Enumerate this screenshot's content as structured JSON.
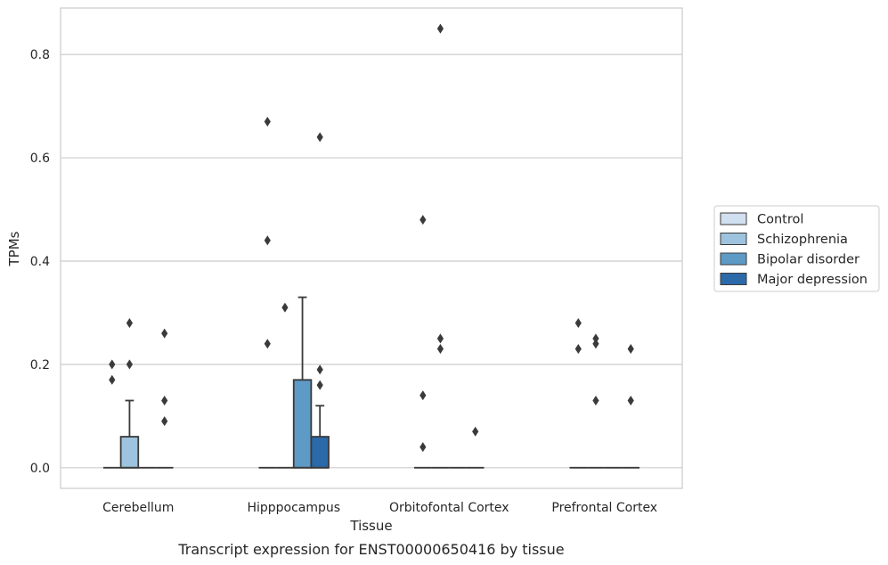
{
  "chart_data": {
    "type": "box",
    "title": "Transcript expression for ENST00000650416 by tissue",
    "xlabel": "Tissue",
    "ylabel": "TPMs",
    "ylim": [
      -0.04,
      0.89
    ],
    "yticks": [
      "0.0",
      "0.2",
      "0.4",
      "0.6",
      "0.8"
    ],
    "grid": "horizontal",
    "legend_position": "outside-right",
    "categories": [
      "Cerebellum",
      "Hipppocampus",
      "Orbitofontal Cortex",
      "Prefrontal Cortex"
    ],
    "series": [
      {
        "name": "Control",
        "color": "#d1e0f0",
        "boxes": [
          {
            "q1": 0,
            "median": 0,
            "q3": 0,
            "whisker_low": 0,
            "whisker_high": 0,
            "outliers": [
              0.17,
              0.2
            ]
          },
          {
            "q1": 0,
            "median": 0,
            "q3": 0,
            "whisker_low": 0,
            "whisker_high": 0,
            "outliers": [
              0.24,
              0.44,
              0.67
            ]
          },
          {
            "q1": 0,
            "median": 0,
            "q3": 0,
            "whisker_low": 0,
            "whisker_high": 0,
            "outliers": [
              0.04,
              0.14,
              0.48
            ]
          },
          {
            "q1": 0,
            "median": 0,
            "q3": 0,
            "whisker_low": 0,
            "whisker_high": 0,
            "outliers": [
              0.23,
              0.28
            ]
          }
        ]
      },
      {
        "name": "Schizophrenia",
        "color": "#9dc3de",
        "boxes": [
          {
            "q1": 0,
            "median": 0,
            "q3": 0.06,
            "whisker_low": 0,
            "whisker_high": 0.13,
            "outliers": [
              0.2,
              0.28
            ]
          },
          {
            "q1": 0,
            "median": 0,
            "q3": 0,
            "whisker_low": 0,
            "whisker_high": 0,
            "outliers": [
              0.31
            ]
          },
          {
            "q1": 0,
            "median": 0,
            "q3": 0,
            "whisker_low": 0,
            "whisker_high": 0,
            "outliers": [
              0.23,
              0.25,
              0.85
            ]
          },
          {
            "q1": 0,
            "median": 0,
            "q3": 0,
            "whisker_low": 0,
            "whisker_high": 0,
            "outliers": [
              0.13,
              0.24,
              0.25
            ]
          }
        ]
      },
      {
        "name": "Bipolar disorder",
        "color": "#5d9ac6",
        "boxes": [
          {
            "q1": 0,
            "median": 0,
            "q3": 0,
            "whisker_low": 0,
            "whisker_high": 0,
            "outliers": []
          },
          {
            "q1": 0,
            "median": 0,
            "q3": 0.17,
            "whisker_low": 0,
            "whisker_high": 0.33,
            "outliers": []
          },
          {
            "q1": 0,
            "median": 0,
            "q3": 0,
            "whisker_low": 0,
            "whisker_high": 0,
            "outliers": []
          },
          {
            "q1": 0,
            "median": 0,
            "q3": 0,
            "whisker_low": 0,
            "whisker_high": 0,
            "outliers": []
          }
        ]
      },
      {
        "name": "Major depression",
        "color": "#2b69a8",
        "boxes": [
          {
            "q1": 0,
            "median": 0,
            "q3": 0,
            "whisker_low": 0,
            "whisker_high": 0,
            "outliers": [
              0.09,
              0.13,
              0.26
            ]
          },
          {
            "q1": 0,
            "median": 0,
            "q3": 0.06,
            "whisker_low": 0,
            "whisker_high": 0.12,
            "outliers": [
              0.16,
              0.19,
              0.64
            ]
          },
          {
            "q1": 0,
            "median": 0,
            "q3": 0,
            "whisker_low": 0,
            "whisker_high": 0,
            "outliers": [
              0.07
            ]
          },
          {
            "q1": 0,
            "median": 0,
            "q3": 0,
            "whisker_low": 0,
            "whisker_high": 0,
            "outliers": [
              0.13,
              0.23
            ]
          }
        ]
      }
    ]
  }
}
